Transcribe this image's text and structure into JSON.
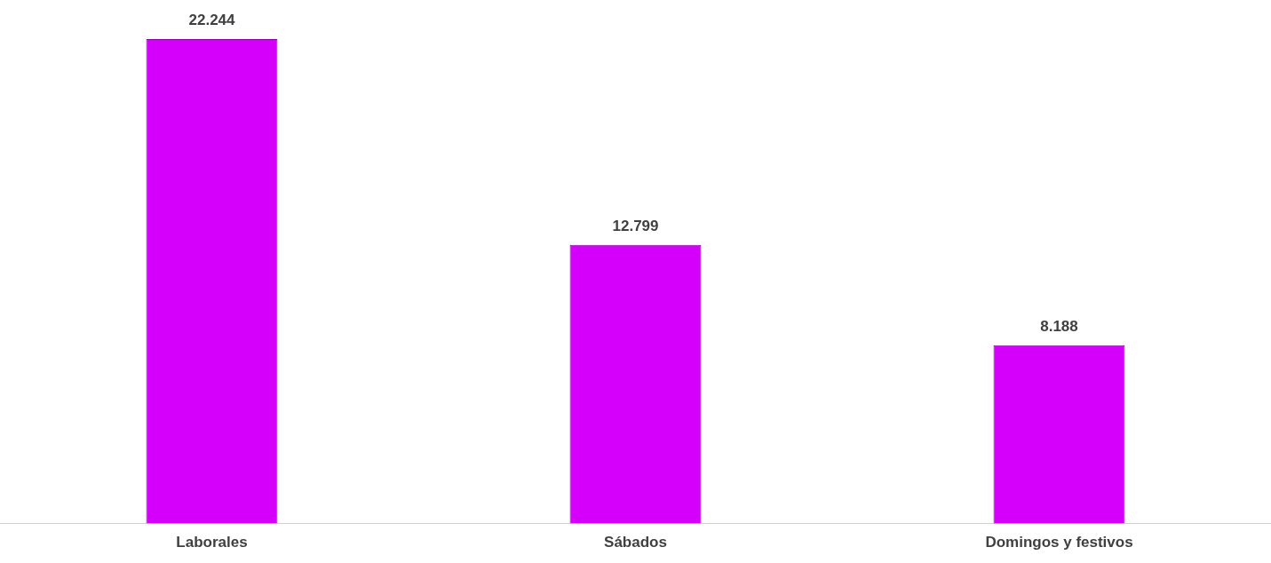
{
  "chart_data": {
    "type": "bar",
    "categories": [
      "Laborales",
      "Sábados",
      "Domingos y festivos"
    ],
    "values": [
      22244,
      12799,
      8188
    ],
    "value_labels": [
      "22.244",
      "12.799",
      "8.188"
    ],
    "color": "#d500fb",
    "grid": false,
    "legend": false
  }
}
